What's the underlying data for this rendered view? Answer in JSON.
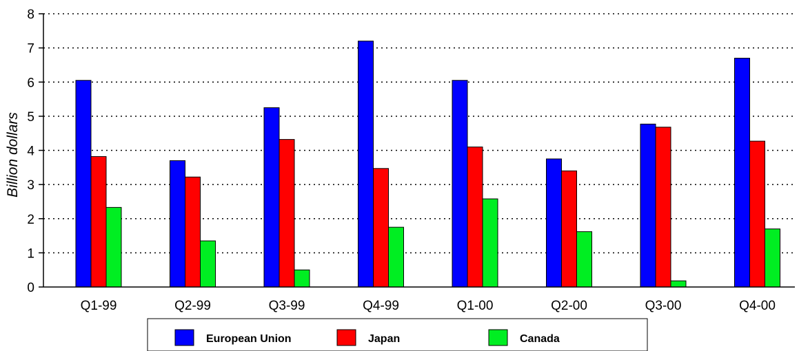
{
  "chart_data": {
    "type": "bar",
    "title": "",
    "xlabel": "",
    "ylabel": "Billion dollars",
    "ylim": [
      0,
      8
    ],
    "yticks": [
      0,
      1,
      2,
      3,
      4,
      5,
      6,
      7,
      8
    ],
    "grid": "horizontal-dotted",
    "legend_position": "bottom",
    "categories": [
      "Q1-99",
      "Q2-99",
      "Q3-99",
      "Q4-99",
      "Q1-00",
      "Q2-00",
      "Q3-00",
      "Q4-00"
    ],
    "series": [
      {
        "name": "European Union",
        "color": "#0000ff",
        "values": [
          6.05,
          3.7,
          5.25,
          7.2,
          6.05,
          3.75,
          4.77,
          6.7
        ]
      },
      {
        "name": "Japan",
        "color": "#ff0000",
        "values": [
          3.82,
          3.22,
          4.32,
          3.47,
          4.1,
          3.4,
          4.68,
          4.27
        ]
      },
      {
        "name": "Canada",
        "color": "#00ee22",
        "values": [
          2.33,
          1.35,
          0.5,
          1.75,
          2.58,
          1.62,
          0.18,
          1.7
        ]
      }
    ]
  }
}
